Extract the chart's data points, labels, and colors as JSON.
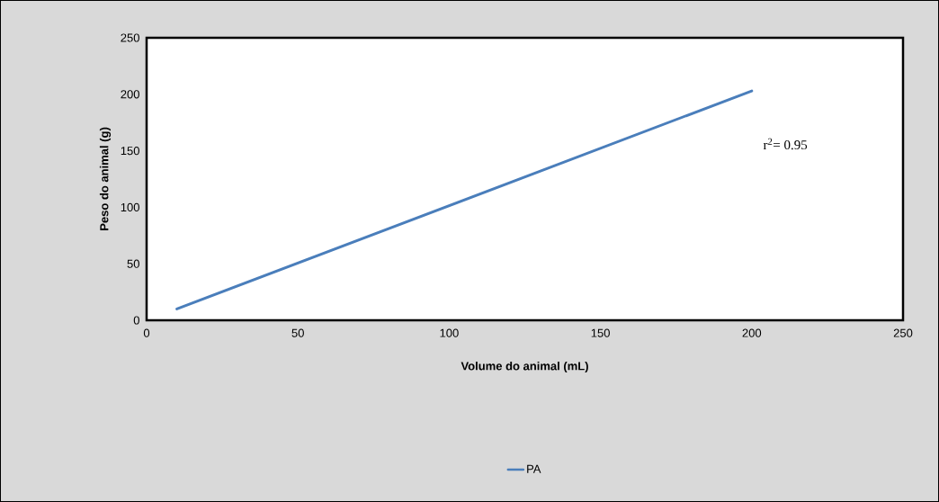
{
  "chart_data": {
    "type": "line",
    "xlabel": "Volume do animal (mL)",
    "ylabel": "Peso do animal (g)",
    "annotations": [
      "r$^{2}$= 0.95"
    ],
    "x": [
      10,
      200
    ],
    "series": [
      {
        "name": "PA",
        "color": "#4a7ebb",
        "values": [
          10,
          203
        ]
      }
    ],
    "xlim": [
      0,
      250
    ],
    "ylim": [
      0,
      250
    ],
    "xticks": [
      0,
      50,
      100,
      150,
      200,
      250
    ],
    "yticks": [
      0,
      50,
      100,
      150,
      200,
      250
    ],
    "legend": "bottom"
  }
}
